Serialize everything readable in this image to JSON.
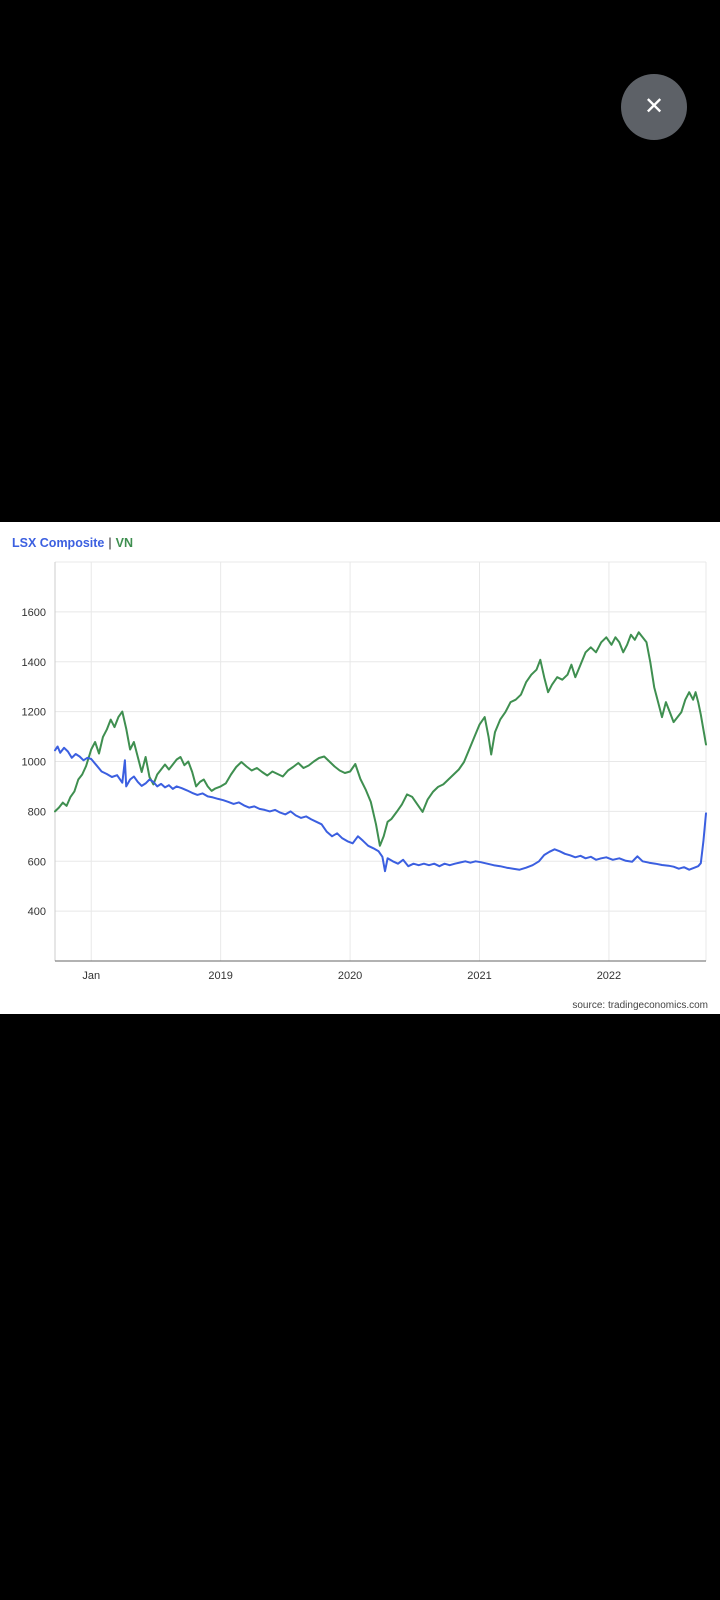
{
  "overlay": {
    "close_icon": "✕"
  },
  "chart": {
    "legend": {
      "series1": "LSX Composite",
      "separator": "|",
      "series2": "VN"
    },
    "source": "source: tradingeconomics.com"
  },
  "chart_data": {
    "type": "line",
    "legend_position": "top-left",
    "grid": true,
    "x_axis": {
      "range": [
        2017.72,
        2022.75
      ],
      "ticks": [
        2018,
        2019,
        2020,
        2021,
        2022
      ],
      "tick_labels": [
        "Jan",
        "2019",
        "2020",
        "2021",
        "2022"
      ]
    },
    "y_axis": {
      "range": [
        200,
        1800
      ],
      "ticks": [
        400,
        600,
        800,
        1000,
        1200,
        1400,
        1600
      ],
      "tick_labels": [
        "400",
        "600",
        "800",
        "1000",
        "1200",
        "1400",
        "1600"
      ]
    },
    "series": [
      {
        "name": "LSX Composite",
        "color": "#3b5fe0",
        "points": [
          [
            2017.72,
            1045
          ],
          [
            2017.74,
            1060
          ],
          [
            2017.76,
            1035
          ],
          [
            2017.79,
            1055
          ],
          [
            2017.82,
            1040
          ],
          [
            2017.85,
            1015
          ],
          [
            2017.88,
            1030
          ],
          [
            2017.91,
            1020
          ],
          [
            2017.94,
            1005
          ],
          [
            2017.97,
            1015
          ],
          [
            2018.0,
            1010
          ],
          [
            2018.04,
            985
          ],
          [
            2018.08,
            960
          ],
          [
            2018.12,
            950
          ],
          [
            2018.16,
            938
          ],
          [
            2018.2,
            945
          ],
          [
            2018.24,
            915
          ],
          [
            2018.26,
            1005
          ],
          [
            2018.27,
            900
          ],
          [
            2018.3,
            928
          ],
          [
            2018.33,
            940
          ],
          [
            2018.36,
            918
          ],
          [
            2018.39,
            902
          ],
          [
            2018.42,
            912
          ],
          [
            2018.45,
            928
          ],
          [
            2018.48,
            918
          ],
          [
            2018.51,
            900
          ],
          [
            2018.54,
            910
          ],
          [
            2018.57,
            896
          ],
          [
            2018.6,
            905
          ],
          [
            2018.63,
            890
          ],
          [
            2018.66,
            900
          ],
          [
            2018.7,
            893
          ],
          [
            2018.74,
            884
          ],
          [
            2018.78,
            874
          ],
          [
            2018.82,
            866
          ],
          [
            2018.86,
            872
          ],
          [
            2018.9,
            860
          ],
          [
            2018.94,
            856
          ],
          [
            2018.98,
            850
          ],
          [
            2019.02,
            845
          ],
          [
            2019.06,
            838
          ],
          [
            2019.1,
            830
          ],
          [
            2019.14,
            836
          ],
          [
            2019.18,
            824
          ],
          [
            2019.22,
            815
          ],
          [
            2019.26,
            820
          ],
          [
            2019.3,
            810
          ],
          [
            2019.34,
            806
          ],
          [
            2019.38,
            800
          ],
          [
            2019.42,
            806
          ],
          [
            2019.46,
            795
          ],
          [
            2019.5,
            788
          ],
          [
            2019.54,
            800
          ],
          [
            2019.58,
            784
          ],
          [
            2019.62,
            774
          ],
          [
            2019.66,
            780
          ],
          [
            2019.7,
            768
          ],
          [
            2019.74,
            758
          ],
          [
            2019.78,
            748
          ],
          [
            2019.82,
            718
          ],
          [
            2019.86,
            700
          ],
          [
            2019.9,
            712
          ],
          [
            2019.94,
            692
          ],
          [
            2019.98,
            680
          ],
          [
            2020.02,
            672
          ],
          [
            2020.06,
            700
          ],
          [
            2020.1,
            682
          ],
          [
            2020.14,
            662
          ],
          [
            2020.18,
            652
          ],
          [
            2020.22,
            640
          ],
          [
            2020.25,
            618
          ],
          [
            2020.27,
            560
          ],
          [
            2020.29,
            612
          ],
          [
            2020.33,
            600
          ],
          [
            2020.37,
            590
          ],
          [
            2020.41,
            606
          ],
          [
            2020.45,
            580
          ],
          [
            2020.49,
            590
          ],
          [
            2020.53,
            584
          ],
          [
            2020.57,
            590
          ],
          [
            2020.61,
            584
          ],
          [
            2020.65,
            590
          ],
          [
            2020.69,
            580
          ],
          [
            2020.73,
            590
          ],
          [
            2020.77,
            584
          ],
          [
            2020.81,
            590
          ],
          [
            2020.85,
            595
          ],
          [
            2020.89,
            600
          ],
          [
            2020.93,
            594
          ],
          [
            2020.97,
            600
          ],
          [
            2021.01,
            596
          ],
          [
            2021.06,
            590
          ],
          [
            2021.11,
            584
          ],
          [
            2021.16,
            580
          ],
          [
            2021.21,
            574
          ],
          [
            2021.26,
            570
          ],
          [
            2021.31,
            566
          ],
          [
            2021.36,
            574
          ],
          [
            2021.41,
            584
          ],
          [
            2021.46,
            600
          ],
          [
            2021.5,
            625
          ],
          [
            2021.54,
            638
          ],
          [
            2021.58,
            648
          ],
          [
            2021.62,
            640
          ],
          [
            2021.66,
            630
          ],
          [
            2021.7,
            624
          ],
          [
            2021.74,
            616
          ],
          [
            2021.78,
            622
          ],
          [
            2021.82,
            612
          ],
          [
            2021.86,
            618
          ],
          [
            2021.9,
            606
          ],
          [
            2021.94,
            612
          ],
          [
            2021.98,
            616
          ],
          [
            2022.03,
            606
          ],
          [
            2022.08,
            612
          ],
          [
            2022.13,
            602
          ],
          [
            2022.18,
            598
          ],
          [
            2022.22,
            620
          ],
          [
            2022.26,
            600
          ],
          [
            2022.31,
            594
          ],
          [
            2022.36,
            590
          ],
          [
            2022.41,
            585
          ],
          [
            2022.46,
            582
          ],
          [
            2022.5,
            578
          ],
          [
            2022.54,
            570
          ],
          [
            2022.58,
            576
          ],
          [
            2022.62,
            566
          ],
          [
            2022.66,
            574
          ],
          [
            2022.69,
            580
          ],
          [
            2022.71,
            592
          ],
          [
            2022.73,
            680
          ],
          [
            2022.75,
            792
          ]
        ]
      },
      {
        "name": "VN",
        "color": "#3f8f50",
        "points": [
          [
            2017.72,
            800
          ],
          [
            2017.75,
            815
          ],
          [
            2017.78,
            835
          ],
          [
            2017.81,
            822
          ],
          [
            2017.84,
            858
          ],
          [
            2017.87,
            880
          ],
          [
            2017.9,
            928
          ],
          [
            2017.93,
            948
          ],
          [
            2017.96,
            982
          ],
          [
            2018.0,
            1048
          ],
          [
            2018.03,
            1078
          ],
          [
            2018.06,
            1032
          ],
          [
            2018.09,
            1098
          ],
          [
            2018.12,
            1128
          ],
          [
            2018.15,
            1168
          ],
          [
            2018.18,
            1138
          ],
          [
            2018.21,
            1178
          ],
          [
            2018.24,
            1200
          ],
          [
            2018.27,
            1132
          ],
          [
            2018.3,
            1048
          ],
          [
            2018.33,
            1078
          ],
          [
            2018.36,
            1018
          ],
          [
            2018.39,
            958
          ],
          [
            2018.42,
            1018
          ],
          [
            2018.45,
            938
          ],
          [
            2018.48,
            908
          ],
          [
            2018.51,
            948
          ],
          [
            2018.54,
            968
          ],
          [
            2018.57,
            988
          ],
          [
            2018.6,
            968
          ],
          [
            2018.63,
            988
          ],
          [
            2018.66,
            1008
          ],
          [
            2018.69,
            1018
          ],
          [
            2018.72,
            985
          ],
          [
            2018.75,
            1000
          ],
          [
            2018.78,
            958
          ],
          [
            2018.81,
            900
          ],
          [
            2018.84,
            918
          ],
          [
            2018.87,
            928
          ],
          [
            2018.9,
            900
          ],
          [
            2018.93,
            882
          ],
          [
            2018.96,
            892
          ],
          [
            2019.0,
            900
          ],
          [
            2019.04,
            912
          ],
          [
            2019.08,
            948
          ],
          [
            2019.12,
            978
          ],
          [
            2019.16,
            998
          ],
          [
            2019.2,
            980
          ],
          [
            2019.24,
            964
          ],
          [
            2019.28,
            974
          ],
          [
            2019.32,
            958
          ],
          [
            2019.36,
            944
          ],
          [
            2019.4,
            960
          ],
          [
            2019.44,
            950
          ],
          [
            2019.48,
            940
          ],
          [
            2019.52,
            964
          ],
          [
            2019.56,
            978
          ],
          [
            2019.6,
            994
          ],
          [
            2019.64,
            974
          ],
          [
            2019.68,
            984
          ],
          [
            2019.72,
            1000
          ],
          [
            2019.76,
            1014
          ],
          [
            2019.8,
            1020
          ],
          [
            2019.84,
            1000
          ],
          [
            2019.88,
            980
          ],
          [
            2019.92,
            964
          ],
          [
            2019.96,
            954
          ],
          [
            2020.0,
            960
          ],
          [
            2020.04,
            990
          ],
          [
            2020.08,
            930
          ],
          [
            2020.12,
            888
          ],
          [
            2020.16,
            838
          ],
          [
            2020.2,
            748
          ],
          [
            2020.23,
            662
          ],
          [
            2020.26,
            700
          ],
          [
            2020.29,
            758
          ],
          [
            2020.32,
            770
          ],
          [
            2020.36,
            798
          ],
          [
            2020.4,
            828
          ],
          [
            2020.44,
            868
          ],
          [
            2020.48,
            858
          ],
          [
            2020.52,
            828
          ],
          [
            2020.56,
            798
          ],
          [
            2020.6,
            848
          ],
          [
            2020.64,
            878
          ],
          [
            2020.68,
            898
          ],
          [
            2020.72,
            908
          ],
          [
            2020.76,
            928
          ],
          [
            2020.8,
            948
          ],
          [
            2020.84,
            968
          ],
          [
            2020.88,
            998
          ],
          [
            2020.92,
            1048
          ],
          [
            2020.96,
            1098
          ],
          [
            2021.0,
            1148
          ],
          [
            2021.04,
            1178
          ],
          [
            2021.07,
            1098
          ],
          [
            2021.09,
            1028
          ],
          [
            2021.12,
            1118
          ],
          [
            2021.16,
            1168
          ],
          [
            2021.2,
            1198
          ],
          [
            2021.24,
            1238
          ],
          [
            2021.28,
            1248
          ],
          [
            2021.32,
            1268
          ],
          [
            2021.36,
            1318
          ],
          [
            2021.4,
            1348
          ],
          [
            2021.44,
            1368
          ],
          [
            2021.47,
            1408
          ],
          [
            2021.5,
            1338
          ],
          [
            2021.53,
            1278
          ],
          [
            2021.56,
            1308
          ],
          [
            2021.6,
            1338
          ],
          [
            2021.64,
            1328
          ],
          [
            2021.68,
            1348
          ],
          [
            2021.71,
            1388
          ],
          [
            2021.74,
            1338
          ],
          [
            2021.78,
            1388
          ],
          [
            2021.82,
            1438
          ],
          [
            2021.86,
            1458
          ],
          [
            2021.9,
            1438
          ],
          [
            2021.94,
            1478
          ],
          [
            2021.98,
            1498
          ],
          [
            2022.02,
            1468
          ],
          [
            2022.05,
            1498
          ],
          [
            2022.08,
            1478
          ],
          [
            2022.11,
            1438
          ],
          [
            2022.14,
            1468
          ],
          [
            2022.17,
            1508
          ],
          [
            2022.2,
            1488
          ],
          [
            2022.23,
            1518
          ],
          [
            2022.26,
            1498
          ],
          [
            2022.29,
            1478
          ],
          [
            2022.32,
            1398
          ],
          [
            2022.35,
            1298
          ],
          [
            2022.38,
            1238
          ],
          [
            2022.41,
            1178
          ],
          [
            2022.44,
            1238
          ],
          [
            2022.47,
            1198
          ],
          [
            2022.5,
            1158
          ],
          [
            2022.53,
            1178
          ],
          [
            2022.56,
            1198
          ],
          [
            2022.59,
            1248
          ],
          [
            2022.62,
            1278
          ],
          [
            2022.65,
            1248
          ],
          [
            2022.67,
            1278
          ],
          [
            2022.69,
            1238
          ],
          [
            2022.71,
            1188
          ],
          [
            2022.73,
            1128
          ],
          [
            2022.75,
            1068
          ]
        ]
      }
    ]
  }
}
